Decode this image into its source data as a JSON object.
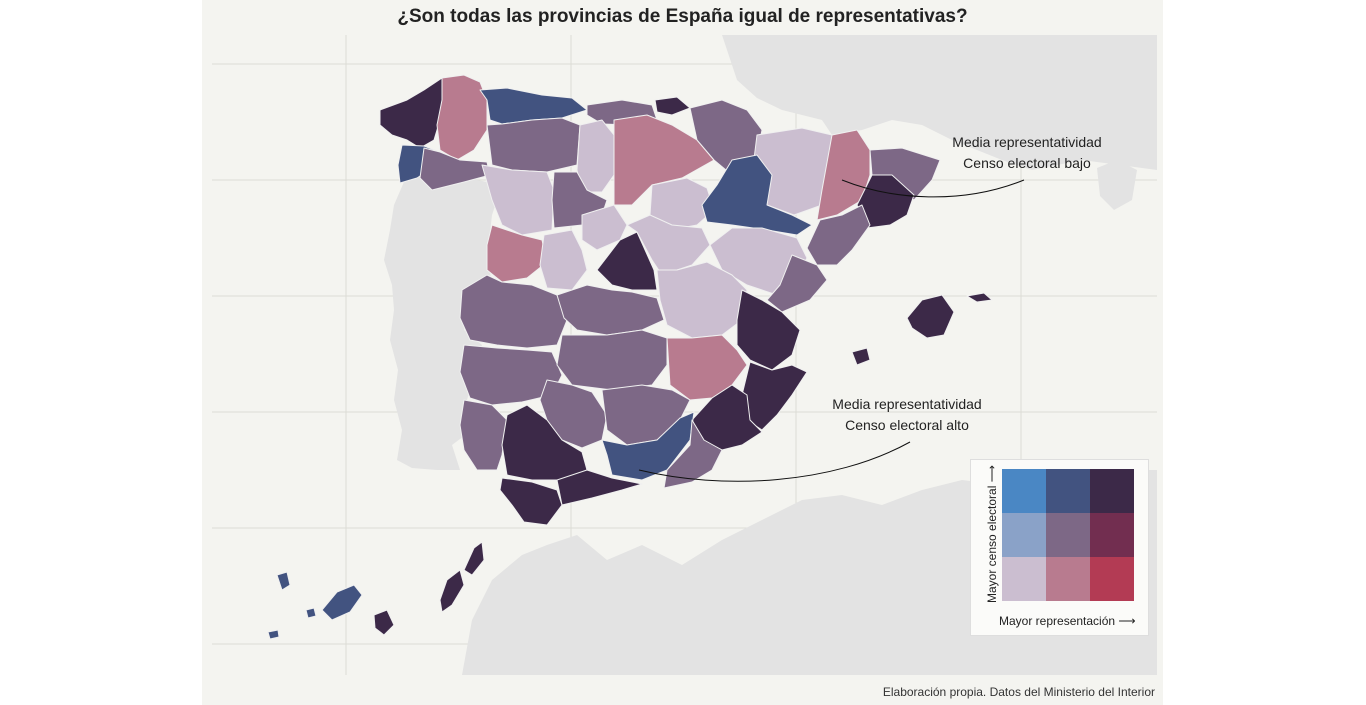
{
  "title": "¿Son todas las provincias de España igual de representativas?",
  "annotations": {
    "north": {
      "line1": "Media representatividad",
      "line2": "Censo electoral bajo"
    },
    "south": {
      "line1": "Media representatividad",
      "line2": "Censo electoral alto"
    }
  },
  "caption": "Elaboración propia. Datos del Ministerio del Interior",
  "legend": {
    "x_label": "Mayor representación",
    "y_label": "Mayor censo electoral",
    "arrow": "⟶",
    "grid": [
      [
        "#4a87c4",
        "#425380",
        "#3c2948"
      ],
      [
        "#8aa2c8",
        "#7d6886",
        "#722e50"
      ],
      [
        "#cbbed0",
        "#b87b8f",
        "#b33b54"
      ]
    ]
  },
  "colors": {
    "panel_bg": "#f4f4f0",
    "neighbor_land": "#e3e3e3",
    "province_border": "#f0f0f0",
    "c_dark": "#3c2948",
    "c_mid": "#7d6886",
    "c_light": "#cbbed0",
    "c_pink": "#b87b8f",
    "c_blue": "#425380"
  },
  "provinces": [
    {
      "name": "A Coruña",
      "class": "dark"
    },
    {
      "name": "Lugo",
      "class": "pink"
    },
    {
      "name": "Asturias",
      "class": "blue"
    },
    {
      "name": "Cantabria",
      "class": "mid"
    },
    {
      "name": "Bizkaia",
      "class": "dark"
    },
    {
      "name": "Pontevedra",
      "class": "blue"
    },
    {
      "name": "Ourense",
      "class": "mid"
    },
    {
      "name": "León",
      "class": "mid"
    },
    {
      "name": "Palencia",
      "class": "light"
    },
    {
      "name": "Burgos",
      "class": "pink"
    },
    {
      "name": "Navarra",
      "class": "mid"
    },
    {
      "name": "Huesca",
      "class": "light"
    },
    {
      "name": "Lleida",
      "class": "pink"
    },
    {
      "name": "Girona",
      "class": "mid"
    },
    {
      "name": "Barcelona",
      "class": "dark"
    },
    {
      "name": "Zamora",
      "class": "light"
    },
    {
      "name": "Valladolid",
      "class": "mid"
    },
    {
      "name": "Soria",
      "class": "light"
    },
    {
      "name": "Zaragoza",
      "class": "blue"
    },
    {
      "name": "Tarragona",
      "class": "mid"
    },
    {
      "name": "Salamanca",
      "class": "pink"
    },
    {
      "name": "Ávila",
      "class": "light"
    },
    {
      "name": "Segovia",
      "class": "light"
    },
    {
      "name": "Madrid",
      "class": "dark"
    },
    {
      "name": "Guadalajara",
      "class": "light"
    },
    {
      "name": "Teruel",
      "class": "light"
    },
    {
      "name": "Castellón",
      "class": "mid"
    },
    {
      "name": "Cáceres",
      "class": "mid"
    },
    {
      "name": "Toledo",
      "class": "mid"
    },
    {
      "name": "Cuenca",
      "class": "light"
    },
    {
      "name": "Valencia",
      "class": "dark"
    },
    {
      "name": "Badajoz",
      "class": "mid"
    },
    {
      "name": "Ciudad Real",
      "class": "mid"
    },
    {
      "name": "Albacete",
      "class": "pink"
    },
    {
      "name": "Alicante",
      "class": "dark"
    },
    {
      "name": "Murcia",
      "class": "dark"
    },
    {
      "name": "Córdoba",
      "class": "mid"
    },
    {
      "name": "Jaén",
      "class": "mid"
    },
    {
      "name": "Huelva",
      "class": "mid"
    },
    {
      "name": "Sevilla",
      "class": "dark"
    },
    {
      "name": "Granada",
      "class": "blue"
    },
    {
      "name": "Almería",
      "class": "mid"
    },
    {
      "name": "Cádiz",
      "class": "dark"
    },
    {
      "name": "Málaga",
      "class": "dark"
    },
    {
      "name": "Illes Balears",
      "class": "dark"
    },
    {
      "name": "Santa Cruz de Tenerife",
      "class": "blue"
    },
    {
      "name": "Las Palmas",
      "class": "dark"
    }
  ]
}
